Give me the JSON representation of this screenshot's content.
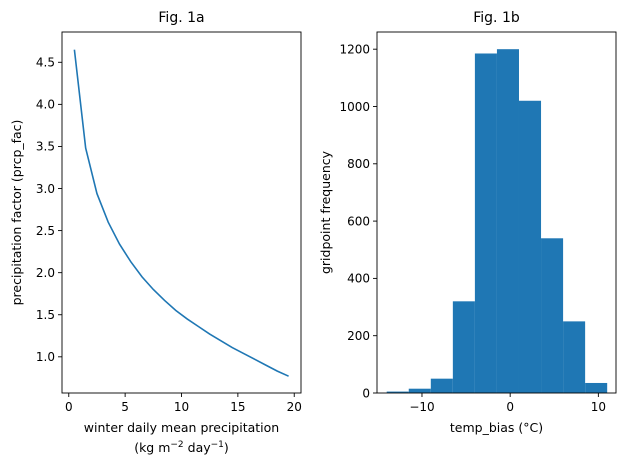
{
  "chart_data": [
    {
      "type": "line",
      "title": "Fig. 1a",
      "xlabel_line1": "winter daily mean precipitation",
      "xlabel_line2_prefix": "(kg m",
      "xlabel_line2_sup1": "−2",
      "xlabel_line2_mid": " day",
      "xlabel_line2_sup2": "−1",
      "xlabel_line2_suffix": ")",
      "ylabel": "precipitation factor (prcp_fac)",
      "xlim": [
        -0.6,
        20.6
      ],
      "ylim": [
        0.57,
        4.86
      ],
      "xticks": [
        0,
        5,
        10,
        15,
        20
      ],
      "xtick_labels": [
        "0",
        "5",
        "10",
        "15",
        "20"
      ],
      "yticks": [
        1.0,
        1.5,
        2.0,
        2.5,
        3.0,
        3.5,
        4.0,
        4.5
      ],
      "ytick_labels": [
        "1.0",
        "1.5",
        "2.0",
        "2.5",
        "3.0",
        "3.5",
        "4.0",
        "4.5"
      ],
      "color": "#1f77b4",
      "grid": false,
      "series": [
        {
          "x": [
            0.5,
            1.5,
            2.5,
            3.5,
            4.5,
            5.5,
            6.5,
            7.5,
            8.5,
            9.5,
            10.5,
            11.5,
            12.5,
            13.5,
            14.5,
            15.5,
            16.5,
            17.5,
            18.5,
            19.5
          ],
          "y": [
            4.65,
            3.48,
            2.94,
            2.6,
            2.34,
            2.13,
            1.95,
            1.8,
            1.67,
            1.55,
            1.45,
            1.36,
            1.27,
            1.19,
            1.11,
            1.04,
            0.97,
            0.9,
            0.83,
            0.77
          ]
        }
      ]
    },
    {
      "type": "bar",
      "subtype": "histogram",
      "title": "Fig. 1b",
      "xlabel": "temp_bias (°C)",
      "ylabel": "gridpoint frequency",
      "xlim": [
        -15.1,
        12.0
      ],
      "ylim": [
        0,
        1260
      ],
      "xticks": [
        -10,
        0,
        10
      ],
      "xtick_labels": [
        "−10",
        "0",
        "10"
      ],
      "yticks": [
        0,
        200,
        400,
        600,
        800,
        1000,
        1200
      ],
      "ytick_labels": [
        "0",
        "200",
        "400",
        "600",
        "800",
        "1000",
        "1200"
      ],
      "color": "#1f77b4",
      "grid": false,
      "bin_edges": [
        -14.0,
        -11.5,
        -9.0,
        -6.5,
        -4.0,
        -1.5,
        1.0,
        3.5,
        6.0,
        8.5,
        11.0
      ],
      "values": [
        5,
        15,
        50,
        320,
        1185,
        1200,
        1020,
        540,
        250,
        35
      ]
    }
  ]
}
